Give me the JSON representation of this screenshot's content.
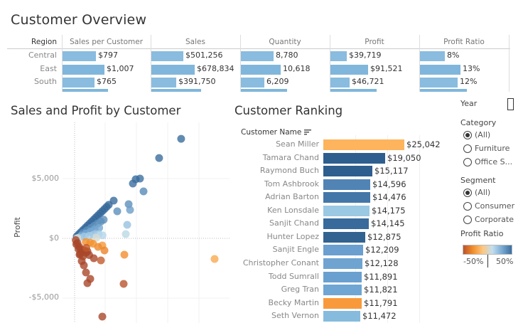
{
  "dashboard": {
    "title": "Customer Overview"
  },
  "overview": {
    "row_header": "Region",
    "columns": [
      "Sales per Customer",
      "Sales",
      "Quantity",
      "Profit",
      "Profit Ratio"
    ],
    "rows": [
      {
        "region": "Central",
        "values": [
          797,
          501256,
          8780,
          39719,
          8
        ],
        "labels": [
          "$797",
          "$501,256",
          "8,780",
          "$39,719",
          "8%"
        ]
      },
      {
        "region": "East",
        "values": [
          1007,
          678834,
          10618,
          91521,
          13
        ],
        "labels": [
          "$1,007",
          "$678,834",
          "10,618",
          "$91,521",
          "13%"
        ]
      },
      {
        "region": "South",
        "values": [
          765,
          391750,
          6209,
          46721,
          12
        ],
        "labels": [
          "$765",
          "$391,750",
          "6,209",
          "$46,721",
          "12%"
        ]
      }
    ],
    "bar_color": "#89bcdf"
  },
  "scatter": {
    "title": "Sales and Profit by Customer",
    "chart_data": {
      "type": "scatter",
      "ylabel": "Profit",
      "xlabel": "",
      "y_ticks": [
        "$5,000",
        "$0",
        "-$5,000"
      ],
      "y_tick_values": [
        5000,
        0,
        -5000
      ],
      "ylim": [
        -7200,
        9200
      ],
      "xlim": [
        -1500,
        28000
      ],
      "grid": true,
      "color_by": "Profit Ratio",
      "points": [
        [
          19050,
          8330,
          0.44
        ],
        [
          15117,
          6720,
          0.44
        ],
        [
          11693,
          4998,
          0.43
        ],
        [
          10930,
          4938,
          0.45
        ],
        [
          10422,
          4581,
          0.44
        ],
        [
          12329,
          3927,
          0.32
        ],
        [
          6990,
          3153,
          0.45
        ],
        [
          9660,
          2856,
          0.3
        ],
        [
          9914,
          2380,
          0.24
        ],
        [
          7626,
          2261,
          0.3
        ],
        [
          9405,
          1130,
          0.12
        ],
        [
          9151,
          357,
          0.04
        ],
        [
          8897,
          -1369,
          -0.15
        ],
        [
          25042,
          -1726,
          -0.07
        ],
        [
          8770,
          -3808,
          -0.43
        ],
        [
          4957,
          -6545,
          -1.3
        ],
        [
          4703,
          -1845,
          -0.39
        ],
        [
          3432,
          -1666,
          -0.49
        ],
        [
          2288,
          -3749,
          -1.6
        ],
        [
          2796,
          -3392,
          -1.2
        ],
        [
          2034,
          -2856,
          -1.4
        ],
        [
          1652,
          -2261,
          -1.4
        ],
        [
          1271,
          -1904,
          -1.5
        ],
        [
          890,
          -1369,
          -1.5
        ],
        [
          381,
          175,
          0.46
        ],
        [
          762,
          350,
          0.46
        ],
        [
          1143,
          526,
          0.46
        ],
        [
          1524,
          701,
          0.46
        ],
        [
          1905,
          876,
          0.46
        ],
        [
          2286,
          1052,
          0.46
        ],
        [
          2667,
          1227,
          0.46
        ],
        [
          3048,
          1402,
          0.46
        ],
        [
          3429,
          1577,
          0.46
        ],
        [
          3810,
          1753,
          0.46
        ],
        [
          4191,
          1928,
          0.46
        ],
        [
          4572,
          2103,
          0.46
        ],
        [
          4953,
          2278,
          0.46
        ],
        [
          5334,
          2454,
          0.46
        ],
        [
          5715,
          2629,
          0.46
        ],
        [
          6096,
          2804,
          0.46
        ],
        [
          1500,
          450,
          0.3
        ],
        [
          2200,
          660,
          0.3
        ],
        [
          2900,
          870,
          0.3
        ],
        [
          3500,
          1050,
          0.3
        ],
        [
          4100,
          1230,
          0.3
        ],
        [
          4700,
          1410,
          0.3
        ],
        [
          5200,
          1560,
          0.3
        ],
        [
          1200,
          240,
          0.2
        ],
        [
          2000,
          400,
          0.2
        ],
        [
          2800,
          560,
          0.2
        ],
        [
          3600,
          720,
          0.2
        ],
        [
          4400,
          880,
          0.2
        ],
        [
          800,
          80,
          0.1
        ],
        [
          1700,
          150,
          0.09
        ],
        [
          2600,
          200,
          0.08
        ],
        [
          3400,
          300,
          0.09
        ],
        [
          4300,
          350,
          0.08
        ],
        [
          5000,
          250,
          0.05
        ],
        [
          500,
          20,
          0.01
        ],
        [
          3900,
          50,
          0.01
        ],
        [
          2794,
          -357,
          -0.13
        ],
        [
          4953,
          -595,
          -0.12
        ],
        [
          5334,
          -1012,
          -0.19
        ],
        [
          4191,
          -714,
          -0.17
        ],
        [
          3300,
          -450,
          -0.14
        ],
        [
          2000,
          -300,
          -0.15
        ],
        [
          200,
          -150,
          -0.75
        ],
        [
          500,
          -400,
          -0.8
        ],
        [
          800,
          -700,
          -0.9
        ],
        [
          1100,
          -900,
          -0.8
        ],
        [
          1400,
          -1100,
          -0.8
        ],
        [
          1700,
          -1000,
          -0.6
        ],
        [
          2000,
          -1200,
          -0.6
        ],
        [
          2300,
          -1100,
          -0.5
        ],
        [
          2600,
          -1400,
          -0.55
        ],
        [
          300,
          -500,
          -1.6
        ],
        [
          700,
          -900,
          -1.3
        ],
        [
          1000,
          -1300,
          -1.3
        ],
        [
          1500,
          -1500,
          -1.0
        ],
        [
          2100,
          -800,
          -0.4
        ]
      ]
    }
  },
  "ranking": {
    "title": "Customer Ranking",
    "column_header": "Customer Name",
    "chart_data": {
      "type": "bar",
      "categories": [
        "Sean Miller",
        "Tamara Chand",
        "Raymond Buch",
        "Tom Ashbrook",
        "Adrian Barton",
        "Ken Lonsdale",
        "Sanjit Chand",
        "Hunter Lopez",
        "Sanjit Engle",
        "Christopher Conant",
        "Todd Sumrall",
        "Greg Tran",
        "Becky Martin",
        "Seth Vernon"
      ],
      "values": [
        25042,
        19050,
        15117,
        14596,
        14476,
        14175,
        14145,
        12875,
        12209,
        12128,
        11891,
        11821,
        11791,
        11472
      ],
      "labels": [
        "$25,042",
        "$19,050",
        "$15,117",
        "$14,596",
        "$14,476",
        "$14,175",
        "$14,145",
        "$12,875",
        "$12,209",
        "$12,128",
        "$11,891",
        "$11,821",
        "$11,791",
        "$11,472"
      ],
      "colors": [
        "#fdb45c",
        "#2e5e8e",
        "#2e5e8e",
        "#5184b4",
        "#4377a8",
        "#9bc8e3",
        "#386a9c",
        "#32628f",
        "#6a9fcf",
        "#6fa4d1",
        "#6aa0cf",
        "#6fa6d3",
        "#f89a3c",
        "#86bbde"
      ]
    }
  },
  "filters": {
    "year": {
      "label": "Year"
    },
    "category": {
      "label": "Category",
      "options": [
        "(All)",
        "Furniture",
        "Office S..."
      ],
      "selected": 0
    },
    "segment": {
      "label": "Segment",
      "options": [
        "(All)",
        "Consumer",
        "Corporate"
      ],
      "selected": 0
    },
    "legend": {
      "label": "Profit Ratio",
      "min_label": "-50%",
      "max_label": "50%",
      "colors": [
        "#b9532d",
        "#f28e2b",
        "#fdc77e",
        "#c3dff0",
        "#79aad2",
        "#3c6e9f"
      ]
    }
  }
}
